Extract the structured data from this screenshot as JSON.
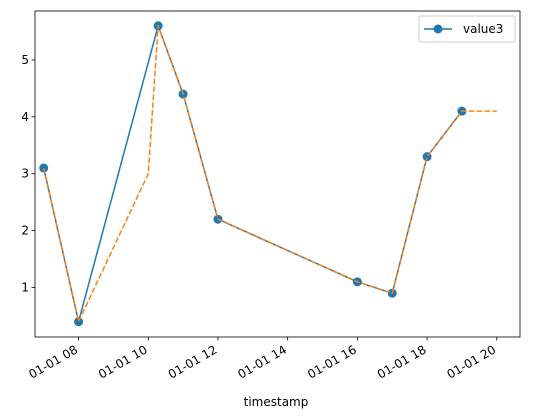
{
  "chart_data": {
    "type": "line",
    "title": "",
    "xlabel": "timestamp",
    "ylabel": "",
    "x_ticks": [
      "01-01 08",
      "01-01 10",
      "01-01 12",
      "01-01 14",
      "01-01 16",
      "01-01 18",
      "01-01 20"
    ],
    "y_ticks": [
      "1",
      "2",
      "3",
      "4",
      "5"
    ],
    "xlim": [
      "01-01 06:45",
      "01-01 20:40"
    ],
    "ylim": [
      0.13,
      5.86
    ],
    "grid": false,
    "legend": {
      "position": "top-right",
      "entries": [
        "value3"
      ]
    },
    "series": [
      {
        "name": "value3",
        "style": "solid-with-markers",
        "color": "#1f77b4",
        "points": [
          {
            "x": "01-01 07:00",
            "y": 3.1
          },
          {
            "x": "01-01 08:00",
            "y": 0.4
          },
          {
            "x": "01-01 10:17",
            "y": 5.6
          },
          {
            "x": "01-01 11:00",
            "y": 4.4
          },
          {
            "x": "01-01 12:00",
            "y": 2.2
          },
          {
            "x": "01-01 16:00",
            "y": 1.1
          },
          {
            "x": "01-01 17:00",
            "y": 0.9
          },
          {
            "x": "01-01 18:00",
            "y": 3.3
          },
          {
            "x": "01-01 19:00",
            "y": 4.1
          }
        ]
      },
      {
        "style": "dashed",
        "color": "#ff7f0e",
        "points": [
          {
            "x": "01-01 07:00",
            "y": 3.1
          },
          {
            "x": "01-01 08:00",
            "y": 0.4
          },
          {
            "x": "01-01 10:00",
            "y": 3.0
          },
          {
            "x": "01-01 10:17",
            "y": 5.6
          },
          {
            "x": "01-01 11:00",
            "y": 4.4
          },
          {
            "x": "01-01 12:00",
            "y": 2.2
          },
          {
            "x": "01-01 16:00",
            "y": 1.1
          },
          {
            "x": "01-01 17:00",
            "y": 0.9
          },
          {
            "x": "01-01 18:00",
            "y": 3.3
          },
          {
            "x": "01-01 19:00",
            "y": 4.1
          },
          {
            "x": "01-01 20:00",
            "y": 4.1
          }
        ]
      }
    ]
  }
}
